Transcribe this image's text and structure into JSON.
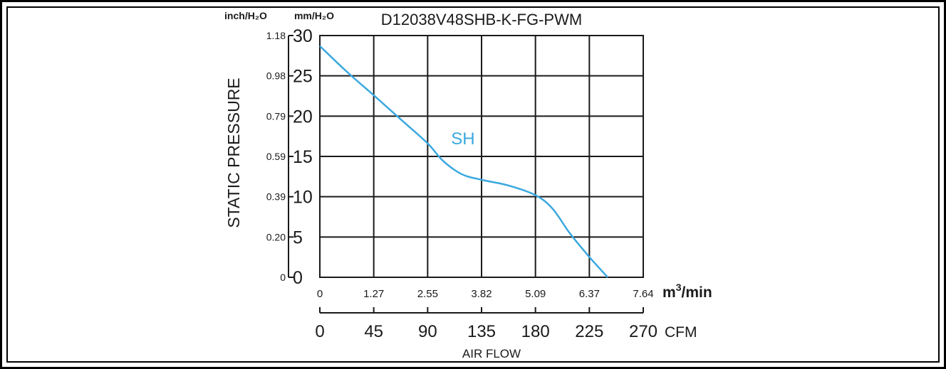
{
  "chart_data": {
    "type": "line",
    "title": "D12038V48SHB-K-FG-PWM",
    "xlabel": "AIR FLOW",
    "ylabel": "STATIC PRESSURE",
    "units": {
      "y_primary": "mm/H₂O",
      "y_secondary": "inch/H₂O",
      "x_primary": "m³/min",
      "x_primary_base": "m",
      "x_primary_exp": "3",
      "x_primary_suffix": "/min",
      "x_secondary": "CFM"
    },
    "xlim": [
      0,
      7.64
    ],
    "ylim": [
      0,
      30
    ],
    "grid": true,
    "y_ticks": [
      "0",
      "5",
      "10",
      "15",
      "20",
      "25",
      "30"
    ],
    "y2_ticks": [
      "0",
      "0.20",
      "0.39",
      "0.59",
      "0.79",
      "0.98",
      "1.18"
    ],
    "x_ticks": [
      "0",
      "1.27",
      "2.55",
      "3.82",
      "5.09",
      "6.37",
      "7.64"
    ],
    "x2_ticks": [
      "0",
      "45",
      "90",
      "135",
      "180",
      "225",
      "270"
    ],
    "series": [
      {
        "name": "SH",
        "color": "#3aa8df",
        "x": [
          0,
          0.64,
          1.27,
          1.91,
          2.55,
          2.9,
          3.35,
          3.82,
          4.45,
          5.09,
          5.5,
          5.9,
          6.37,
          6.8
        ],
        "y": [
          28.7,
          25.5,
          22.6,
          19.6,
          16.6,
          14.5,
          12.8,
          12.1,
          11.4,
          10.2,
          8.5,
          5.5,
          2.5,
          0
        ]
      }
    ]
  }
}
